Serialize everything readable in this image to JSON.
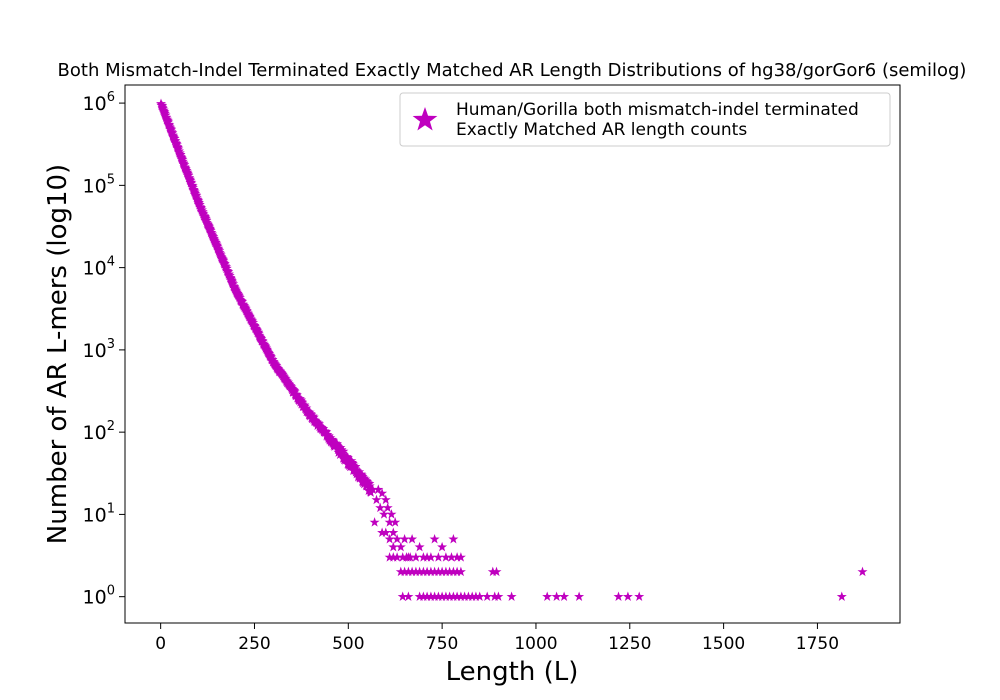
{
  "chart_data": {
    "type": "scatter",
    "title": "Both Mismatch-Indel Terminated Exactly Matched AR Length Distributions of hg38/gorGor6 (semilog)",
    "xlabel": "Length (L)",
    "ylabel": "Number of AR L-mers (log10)",
    "xlim": [
      -95,
      1970
    ],
    "ylim_log10": [
      -0.32,
      6.22
    ],
    "yscale": "log10",
    "xticks": [
      0,
      250,
      500,
      750,
      1000,
      1250,
      1500,
      1750
    ],
    "yticks_exp": [
      0,
      1,
      2,
      3,
      4,
      5,
      6
    ],
    "ytick_base": "10",
    "marker": "star",
    "color": "#bf00bf",
    "grid": false,
    "legend": {
      "placement": "top-right",
      "label": "Human/Gorilla both mismatch-indel terminated\n Exactly Matched AR length counts"
    },
    "series": [
      {
        "name": "Human/Gorilla both mismatch-indel terminated\n Exactly Matched AR length counts",
        "model": {
          "description": "log-linear decay for L = 1..560",
          "x_range": [
            1,
            560
          ],
          "breakpoints": [
            [
              0,
              6.0
            ],
            [
              100,
              4.8
            ],
            [
              200,
              3.72
            ],
            [
              300,
              2.85
            ],
            [
              400,
              2.2
            ],
            [
              500,
              1.65
            ],
            [
              560,
              1.3
            ]
          ]
        },
        "points": [
          [
            565,
            20
          ],
          [
            575,
            15
          ],
          [
            580,
            20
          ],
          [
            585,
            12
          ],
          [
            590,
            18
          ],
          [
            595,
            10
          ],
          [
            600,
            15
          ],
          [
            605,
            12
          ],
          [
            610,
            8
          ],
          [
            615,
            10
          ],
          [
            620,
            6
          ],
          [
            625,
            8
          ],
          [
            630,
            5
          ],
          [
            640,
            4
          ],
          [
            650,
            5
          ],
          [
            660,
            3
          ],
          [
            670,
            5
          ],
          [
            690,
            4
          ],
          [
            710,
            3
          ],
          [
            730,
            5
          ],
          [
            750,
            4
          ],
          [
            780,
            5
          ],
          [
            570,
            8
          ],
          [
            590,
            6
          ],
          [
            600,
            6
          ],
          [
            610,
            5
          ],
          [
            620,
            4
          ],
          [
            630,
            3
          ],
          [
            645,
            3
          ],
          [
            655,
            3
          ],
          [
            665,
            3
          ],
          [
            680,
            3
          ],
          [
            700,
            3
          ],
          [
            720,
            3
          ],
          [
            740,
            3
          ],
          [
            760,
            3
          ],
          [
            775,
            3
          ],
          [
            790,
            3
          ],
          [
            800,
            3
          ],
          [
            610,
            3
          ],
          [
            620,
            3
          ],
          [
            640,
            2
          ],
          [
            650,
            2
          ],
          [
            660,
            2
          ],
          [
            670,
            2
          ],
          [
            680,
            2
          ],
          [
            690,
            2
          ],
          [
            700,
            2
          ],
          [
            710,
            2
          ],
          [
            720,
            2
          ],
          [
            730,
            2
          ],
          [
            740,
            2
          ],
          [
            750,
            2
          ],
          [
            760,
            2
          ],
          [
            770,
            2
          ],
          [
            780,
            2
          ],
          [
            790,
            2
          ],
          [
            800,
            2
          ],
          [
            885,
            2
          ],
          [
            895,
            2
          ],
          [
            1870,
            2
          ],
          [
            645,
            1
          ],
          [
            660,
            1
          ],
          [
            690,
            1
          ],
          [
            700,
            1
          ],
          [
            710,
            1
          ],
          [
            720,
            1
          ],
          [
            730,
            1
          ],
          [
            740,
            1
          ],
          [
            750,
            1
          ],
          [
            760,
            1
          ],
          [
            770,
            1
          ],
          [
            780,
            1
          ],
          [
            790,
            1
          ],
          [
            800,
            1
          ],
          [
            810,
            1
          ],
          [
            820,
            1
          ],
          [
            830,
            1
          ],
          [
            840,
            1
          ],
          [
            850,
            1
          ],
          [
            870,
            1
          ],
          [
            890,
            1
          ],
          [
            900,
            1
          ],
          [
            935,
            1
          ],
          [
            1030,
            1
          ],
          [
            1055,
            1
          ],
          [
            1075,
            1
          ],
          [
            1115,
            1
          ],
          [
            1220,
            1
          ],
          [
            1245,
            1
          ],
          [
            1275,
            1
          ],
          [
            1815,
            1
          ]
        ]
      }
    ]
  }
}
